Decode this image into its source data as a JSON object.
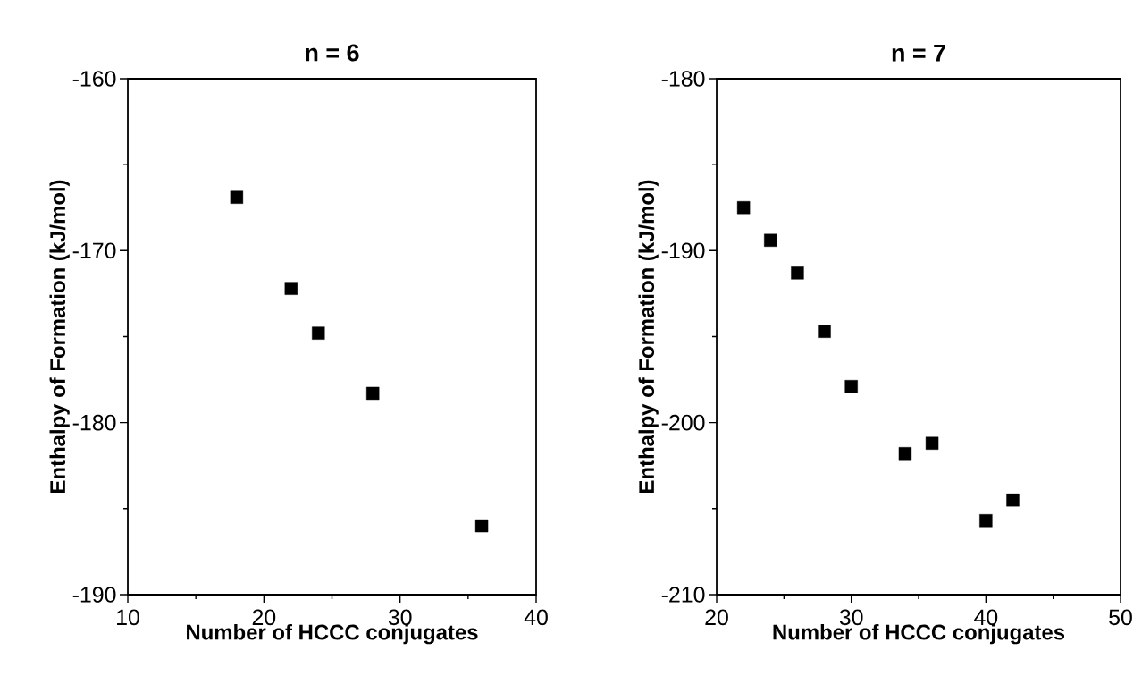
{
  "chart_data": [
    {
      "type": "scatter",
      "title": "n = 6",
      "xlabel": "Number of HCCC conjugates",
      "ylabel": "Enthalpy of Formation  (kJ/mol)",
      "xlim": [
        10,
        40
      ],
      "ylim": [
        -190,
        -160
      ],
      "xticks": [
        10,
        20,
        30,
        40
      ],
      "yticks": [
        -190,
        -180,
        -170,
        -160
      ],
      "marker": "square",
      "color": "#000000",
      "x": [
        18,
        22,
        24,
        28,
        36
      ],
      "values": [
        -166.9,
        -172.2,
        -174.8,
        -178.3,
        -186.0
      ]
    },
    {
      "type": "scatter",
      "title": "n = 7",
      "xlabel": "Number of HCCC conjugates",
      "ylabel": "Enthalpy of Formation  (kJ/mol)",
      "xlim": [
        20,
        50
      ],
      "ylim": [
        -210,
        -180
      ],
      "xticks": [
        20,
        30,
        40,
        50
      ],
      "yticks": [
        -210,
        -200,
        -190,
        -180
      ],
      "marker": "square",
      "color": "#000000",
      "x": [
        22,
        24,
        26,
        28,
        30,
        34,
        36,
        40,
        42
      ],
      "values": [
        -187.5,
        -189.4,
        -191.3,
        -194.7,
        -197.9,
        -201.8,
        -201.2,
        -205.7,
        -204.5
      ]
    }
  ]
}
